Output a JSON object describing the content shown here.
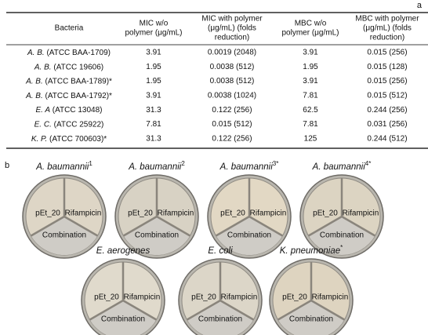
{
  "panel_a": {
    "label": "a",
    "table": {
      "headers": [
        [
          "Bacteria"
        ],
        [
          "MIC w/o",
          "polymer (μg/mL)"
        ],
        [
          "MIC with polymer",
          "(μg/mL) (folds",
          "reduction)"
        ],
        [
          "MBC w/o",
          "polymer (μg/mL)"
        ],
        [
          "MBC with polymer",
          "(μg/mL) (folds",
          "reduction)"
        ]
      ],
      "rows": [
        [
          {
            "species": "A. B.",
            "strain": "(ATCC BAA-1709)"
          },
          "3.91",
          "0.0019 (2048)",
          "3.91",
          "0.015 (256)"
        ],
        [
          {
            "species": "A. B.",
            "strain": "(ATCC 19606)"
          },
          "1.95",
          "0.0038 (512)",
          "1.95",
          "0.015 (128)"
        ],
        [
          {
            "species": "A. B.",
            "strain": "(ATCC BAA-1789)*"
          },
          "1.95",
          "0.0038 (512)",
          "3.91",
          "0.015 (256)"
        ],
        [
          {
            "species": "A. B.",
            "strain": "(ATCC BAA-1792)*"
          },
          "3.91",
          "0.0038 (1024)",
          "7.81",
          "0.015 (512)"
        ],
        [
          {
            "species": "E. A",
            "strain": "(ATCC 13048)"
          },
          "31.3",
          "0.122 (256)",
          "62.5",
          "0.244 (256)"
        ],
        [
          {
            "species": "E. C.",
            "strain": "(ATCC 25922)"
          },
          "7.81",
          "0.015 (512)",
          "7.81",
          "0.031 (256)"
        ],
        [
          {
            "species": "K. P.",
            "strain": "(ATCC 700603)*"
          },
          "31.3",
          "0.122 (256)",
          "125",
          "0.244 (512)"
        ]
      ]
    }
  },
  "panel_b": {
    "label": "b",
    "dishes": [
      {
        "name": "A. baumannii",
        "sup": "1",
        "sectors": [
          "pEt_20",
          "Rifampicin",
          "Combination"
        ]
      },
      {
        "name": "A. baumannii",
        "sup": "2",
        "sectors": [
          "pEt_20",
          "Rifampicin",
          "Combination"
        ]
      },
      {
        "name": "A. baumannii",
        "sup": "3*",
        "sectors": [
          "pEt_20",
          "Rifampicin",
          "Combination"
        ]
      },
      {
        "name": "A. baumannii",
        "sup": "4*",
        "sectors": [
          "pEt_20",
          "Rifampicin",
          "Combination"
        ]
      },
      {
        "name": "E. aerogenes",
        "sectors": [
          "pEt_20",
          "Rifampicin",
          "Combination"
        ]
      },
      {
        "name": "E. coli",
        "sectors": [
          "pEt_20",
          "Rifampicin",
          "Combination"
        ]
      },
      {
        "name": "K. pneumoniae",
        "sup": "*",
        "sectors": [
          "pEt_20",
          "Rifampicin",
          "Combination"
        ]
      }
    ]
  }
}
